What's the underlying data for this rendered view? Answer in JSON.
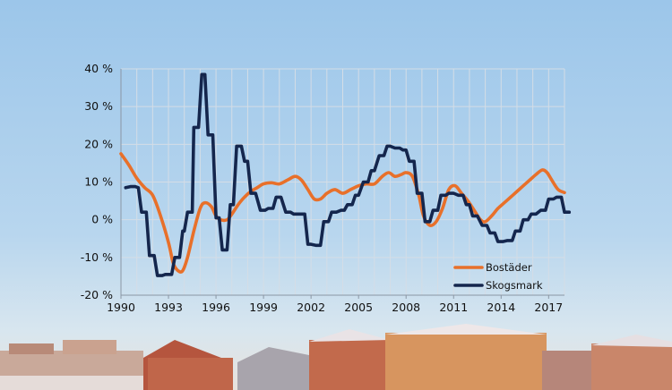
{
  "chart_data": {
    "type": "line",
    "title": "",
    "xlabel": "",
    "ylabel": "",
    "xlim": [
      1990,
      2018
    ],
    "ylim": [
      -20,
      40
    ],
    "x_ticks": [
      {
        "value": 1990,
        "label": "1990"
      },
      {
        "value": 1993,
        "label": "1993"
      },
      {
        "value": 1996,
        "label": "1996"
      },
      {
        "value": 1999,
        "label": "1999"
      },
      {
        "value": 2002,
        "label": "2002"
      },
      {
        "value": 2005,
        "label": "2005"
      },
      {
        "value": 2008,
        "label": "2008"
      },
      {
        "value": 2011,
        "label": "2011"
      },
      {
        "value": 2014,
        "label": "2014"
      },
      {
        "value": 2017,
        "label": "2017"
      }
    ],
    "y_ticks": [
      {
        "value": 40,
        "label": "40 %"
      },
      {
        "value": 30,
        "label": "30 %"
      },
      {
        "value": 20,
        "label": "20 %"
      },
      {
        "value": 10,
        "label": "10 %"
      },
      {
        "value": 0,
        "label": "0 %"
      },
      {
        "value": -10,
        "label": "-10 %"
      },
      {
        "value": -20,
        "label": "-20 %"
      }
    ],
    "grid": true,
    "legend_position": "bottom-right",
    "series": [
      {
        "name": "Bostäder",
        "color": "#e8702a",
        "style": "smooth",
        "points": [
          [
            1990,
            17.5
          ],
          [
            1990.5,
            14.5
          ],
          [
            1991,
            11
          ],
          [
            1991.5,
            8.5
          ],
          [
            1992,
            6.5
          ],
          [
            1992.5,
            1
          ],
          [
            1993,
            -6
          ],
          [
            1993.3,
            -11.5
          ],
          [
            1993.6,
            -13.5
          ],
          [
            1993.9,
            -13.5
          ],
          [
            1994.2,
            -10
          ],
          [
            1994.6,
            -3
          ],
          [
            1995,
            3
          ],
          [
            1995.3,
            4.5
          ],
          [
            1995.7,
            3.5
          ],
          [
            1996,
            1
          ],
          [
            1996.3,
            0
          ],
          [
            1996.7,
            0
          ],
          [
            1997,
            1.5
          ],
          [
            1997.4,
            4
          ],
          [
            1997.8,
            6
          ],
          [
            1998.2,
            7.5
          ],
          [
            1998.6,
            8.5
          ],
          [
            1999,
            9.5
          ],
          [
            1999.5,
            9.8
          ],
          [
            2000,
            9.5
          ],
          [
            2000.5,
            10.5
          ],
          [
            2001,
            11.5
          ],
          [
            2001.4,
            10.5
          ],
          [
            2001.8,
            8
          ],
          [
            2002.2,
            5.5
          ],
          [
            2002.6,
            5.5
          ],
          [
            2003,
            7
          ],
          [
            2003.5,
            8
          ],
          [
            2004,
            7
          ],
          [
            2004.5,
            8
          ],
          [
            2005,
            9
          ],
          [
            2005.5,
            9.5
          ],
          [
            2006,
            9.5
          ],
          [
            2006.5,
            11.5
          ],
          [
            2006.9,
            12.5
          ],
          [
            2007.3,
            11.5
          ],
          [
            2007.7,
            12
          ],
          [
            2008,
            12.5
          ],
          [
            2008.4,
            11.5
          ],
          [
            2008.8,
            6.5
          ],
          [
            2009.1,
            1
          ],
          [
            2009.5,
            -1.5
          ],
          [
            2009.9,
            -0.5
          ],
          [
            2010.3,
            3
          ],
          [
            2010.7,
            8
          ],
          [
            2011.1,
            9
          ],
          [
            2011.5,
            7
          ],
          [
            2011.9,
            5
          ],
          [
            2012.3,
            2.5
          ],
          [
            2012.7,
            0
          ],
          [
            2013,
            -0.5
          ],
          [
            2013.4,
            1
          ],
          [
            2013.8,
            3
          ],
          [
            2014.2,
            4.5
          ],
          [
            2014.6,
            6
          ],
          [
            2015,
            7.5
          ],
          [
            2015.4,
            9
          ],
          [
            2015.8,
            10.5
          ],
          [
            2016.2,
            12
          ],
          [
            2016.6,
            13.2
          ],
          [
            2016.9,
            12.5
          ],
          [
            2017.2,
            10.5
          ],
          [
            2017.6,
            8
          ],
          [
            2018,
            7.2
          ]
        ]
      },
      {
        "name": "Skogsmark",
        "color": "#14264d",
        "style": "step",
        "points": [
          [
            1990.3,
            8.5
          ],
          [
            1990.6,
            8.8
          ],
          [
            1990.9,
            8.8
          ],
          [
            1991.1,
            8.5
          ],
          [
            1991.3,
            2
          ],
          [
            1991.6,
            2
          ],
          [
            1991.8,
            -9.5
          ],
          [
            1992.1,
            -9.5
          ],
          [
            1992.3,
            -14.8
          ],
          [
            1992.6,
            -14.8
          ],
          [
            1992.8,
            -14.5
          ],
          [
            1993.2,
            -14.5
          ],
          [
            1993.4,
            -10
          ],
          [
            1993.7,
            -10
          ],
          [
            1993.9,
            -3
          ],
          [
            1994,
            -3
          ],
          [
            1994.2,
            2
          ],
          [
            1994.5,
            2
          ],
          [
            1994.6,
            24.5
          ],
          [
            1994.9,
            24.5
          ],
          [
            1995.1,
            38.5
          ],
          [
            1995.3,
            38.5
          ],
          [
            1995.5,
            22.5
          ],
          [
            1995.8,
            22.5
          ],
          [
            1996,
            0.5
          ],
          [
            1996.2,
            0.5
          ],
          [
            1996.4,
            -8
          ],
          [
            1996.7,
            -8
          ],
          [
            1996.9,
            4
          ],
          [
            1997.1,
            4
          ],
          [
            1997.3,
            19.5
          ],
          [
            1997.6,
            19.5
          ],
          [
            1997.8,
            15.5
          ],
          [
            1998,
            15.5
          ],
          [
            1998.2,
            7
          ],
          [
            1998.5,
            7
          ],
          [
            1998.8,
            2.5
          ],
          [
            1999.1,
            2.5
          ],
          [
            1999.3,
            3
          ],
          [
            1999.6,
            3
          ],
          [
            1999.8,
            6
          ],
          [
            2000.1,
            6
          ],
          [
            2000.4,
            2
          ],
          [
            2000.7,
            2
          ],
          [
            2000.9,
            1.5
          ],
          [
            2001.2,
            1.5
          ],
          [
            2001.6,
            1.5
          ],
          [
            2001.8,
            -6.5
          ],
          [
            2002,
            -6.5
          ],
          [
            2002.3,
            -6.8
          ],
          [
            2002.6,
            -6.8
          ],
          [
            2002.8,
            -0.5
          ],
          [
            2003.1,
            -0.5
          ],
          [
            2003.3,
            2
          ],
          [
            2003.6,
            2
          ],
          [
            2003.9,
            2.5
          ],
          [
            2004.1,
            2.5
          ],
          [
            2004.3,
            4
          ],
          [
            2004.6,
            4
          ],
          [
            2004.8,
            6.5
          ],
          [
            2005,
            6.5
          ],
          [
            2005.3,
            10
          ],
          [
            2005.6,
            10
          ],
          [
            2005.8,
            13
          ],
          [
            2006,
            13
          ],
          [
            2006.3,
            17
          ],
          [
            2006.6,
            17
          ],
          [
            2006.8,
            19.5
          ],
          [
            2007,
            19.5
          ],
          [
            2007.3,
            19
          ],
          [
            2007.6,
            19
          ],
          [
            2007.8,
            18.5
          ],
          [
            2008,
            18.5
          ],
          [
            2008.2,
            15.5
          ],
          [
            2008.5,
            15.5
          ],
          [
            2008.7,
            7
          ],
          [
            2009,
            7
          ],
          [
            2009.2,
            -0.5
          ],
          [
            2009.5,
            -0.5
          ],
          [
            2009.7,
            2.5
          ],
          [
            2010,
            2.5
          ],
          [
            2010.2,
            6.5
          ],
          [
            2010.5,
            6.5
          ],
          [
            2010.7,
            7
          ],
          [
            2011,
            7
          ],
          [
            2011.3,
            6.5
          ],
          [
            2011.6,
            6.5
          ],
          [
            2011.8,
            4
          ],
          [
            2012,
            4
          ],
          [
            2012.2,
            1
          ],
          [
            2012.5,
            1
          ],
          [
            2012.8,
            -1.5
          ],
          [
            2013.1,
            -1.5
          ],
          [
            2013.3,
            -3.5
          ],
          [
            2013.6,
            -3.5
          ],
          [
            2013.8,
            -5.8
          ],
          [
            2014.1,
            -5.8
          ],
          [
            2014.4,
            -5.5
          ],
          [
            2014.7,
            -5.5
          ],
          [
            2014.9,
            -3
          ],
          [
            2015.2,
            -3
          ],
          [
            2015.4,
            0
          ],
          [
            2015.7,
            0
          ],
          [
            2015.9,
            1.5
          ],
          [
            2016.2,
            1.5
          ],
          [
            2016.5,
            2.5
          ],
          [
            2016.8,
            2.5
          ],
          [
            2017,
            5.5
          ],
          [
            2017.3,
            5.5
          ],
          [
            2017.5,
            6
          ],
          [
            2017.8,
            6
          ],
          [
            2018,
            2
          ],
          [
            2018.3,
            2
          ]
        ]
      }
    ]
  }
}
